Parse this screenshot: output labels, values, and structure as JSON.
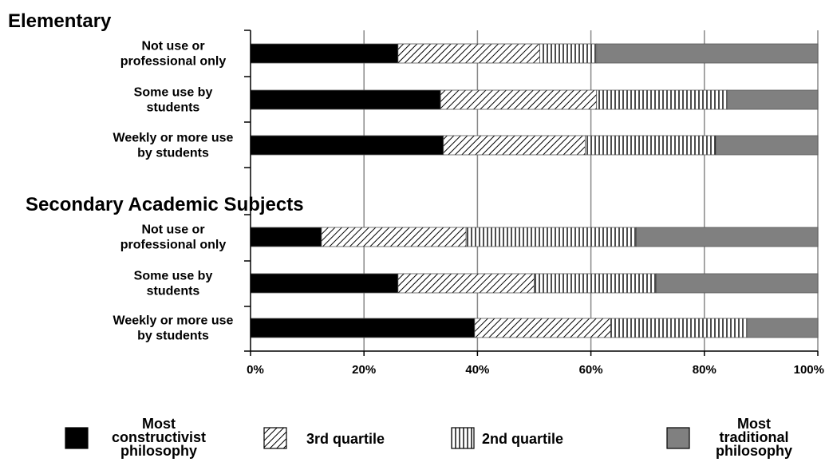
{
  "chart_data": {
    "type": "bar",
    "stacked": true,
    "orientation": "horizontal",
    "xlim": [
      0,
      100
    ],
    "x_ticks": [
      "0%",
      "20%",
      "40%",
      "60%",
      "80%",
      "100%"
    ],
    "grid": true,
    "legend_position": "bottom",
    "legend": [
      {
        "name": "Most constructivist philosophy",
        "lines": [
          "Most",
          "constructivist",
          "philosophy"
        ],
        "pattern": "solid-black"
      },
      {
        "name": "3rd quartile",
        "lines": [
          "3rd quartile"
        ],
        "pattern": "diagonal-hatch"
      },
      {
        "name": "2nd quartile",
        "lines": [
          "2nd quartile"
        ],
        "pattern": "vertical-lines"
      },
      {
        "name": "Most traditional philosophy",
        "lines": [
          "Most",
          "traditional",
          "philosophy"
        ],
        "pattern": "solid-gray"
      }
    ],
    "groups": [
      {
        "title": "Elementary",
        "categories": [
          {
            "lines": [
              "Not use or",
              "professional only"
            ],
            "values": [
              26,
              25,
              10,
              39
            ]
          },
          {
            "lines": [
              "Some use by",
              "students"
            ],
            "values": [
              33.5,
              27.5,
              23,
              16
            ]
          },
          {
            "lines": [
              "Weekly or more use",
              "by students"
            ],
            "values": [
              34,
              25,
              23,
              18
            ]
          }
        ]
      },
      {
        "title": "Secondary Academic Subjects",
        "categories": [
          {
            "lines": [
              "Not use or",
              "professional only"
            ],
            "values": [
              12.5,
              25.5,
              30,
              32
            ]
          },
          {
            "lines": [
              "Some use by",
              "students"
            ],
            "values": [
              26,
              24,
              21.5,
              28.5
            ]
          },
          {
            "lines": [
              "Weekly or more use",
              "by students"
            ],
            "values": [
              39.5,
              24,
              24,
              12.5
            ]
          }
        ]
      }
    ]
  }
}
